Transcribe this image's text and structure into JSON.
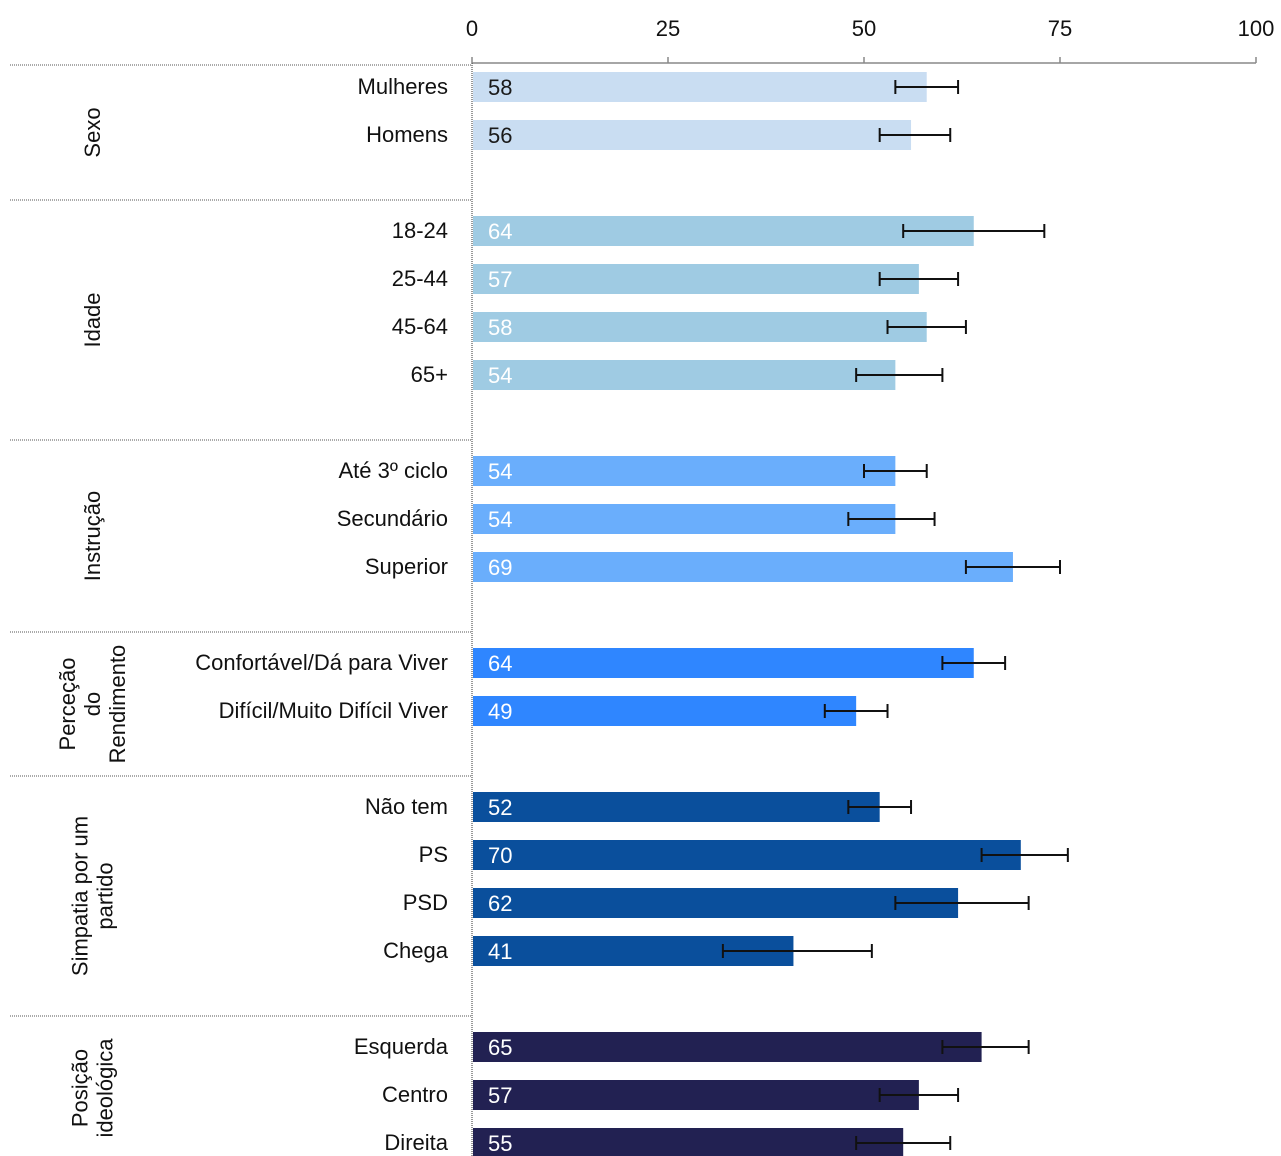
{
  "chart_data": {
    "type": "bar",
    "orientation": "horizontal",
    "xlim": [
      0,
      100
    ],
    "xticks": [
      0,
      25,
      50,
      75,
      100
    ],
    "grid": false,
    "groups": [
      {
        "label_lines": [
          "Sexo"
        ],
        "color": "#c9ddf2",
        "value_label_color": "#1a1a1a",
        "items": [
          {
            "category": "Mulheres",
            "value": 58,
            "label": "58",
            "err_low": 54,
            "err_high": 62
          },
          {
            "category": "Homens",
            "value": 56,
            "label": "56",
            "err_low": 52,
            "err_high": 61
          }
        ]
      },
      {
        "label_lines": [
          "Idade"
        ],
        "color": "#9fcbe3",
        "value_label_color": "#ffffff",
        "items": [
          {
            "category": "18-24",
            "value": 64,
            "label": "64",
            "err_low": 55,
            "err_high": 73
          },
          {
            "category": "25-44",
            "value": 57,
            "label": "57",
            "err_low": 52,
            "err_high": 62
          },
          {
            "category": "45-64",
            "value": 58,
            "label": "58",
            "err_low": 53,
            "err_high": 63
          },
          {
            "category": "65+",
            "value": 54,
            "label": "54",
            "err_low": 49,
            "err_high": 60
          }
        ]
      },
      {
        "label_lines": [
          "Instrução"
        ],
        "color": "#6aaefc",
        "value_label_color": "#ffffff",
        "items": [
          {
            "category": "Até 3º ciclo",
            "value": 54,
            "label": "54",
            "err_low": 50,
            "err_high": 58
          },
          {
            "category": "Secundário",
            "value": 54,
            "label": "54",
            "err_low": 48,
            "err_high": 59
          },
          {
            "category": "Superior",
            "value": 69,
            "label": "69",
            "err_low": 63,
            "err_high": 75
          }
        ]
      },
      {
        "label_lines": [
          "Perceção",
          "do",
          "Rendimento"
        ],
        "color": "#2f86ff",
        "value_label_color": "#ffffff",
        "items": [
          {
            "category": "Confortável/Dá para Viver",
            "value": 64,
            "label": "64",
            "err_low": 60,
            "err_high": 68
          },
          {
            "category": "Difícil/Muito Difícil Viver",
            "value": 49,
            "label": "49",
            "err_low": 45,
            "err_high": 53
          }
        ]
      },
      {
        "label_lines": [
          "Simpatia por um",
          "partido"
        ],
        "color": "#0a4f9c",
        "value_label_color": "#ffffff",
        "items": [
          {
            "category": "Não tem",
            "value": 52,
            "label": "52",
            "err_low": 48,
            "err_high": 56
          },
          {
            "category": "PS",
            "value": 70,
            "label": "70",
            "err_low": 65,
            "err_high": 76
          },
          {
            "category": "PSD",
            "value": 62,
            "label": "62",
            "err_low": 54,
            "err_high": 71
          },
          {
            "category": "Chega",
            "value": 41,
            "label": "41",
            "err_low": 32,
            "err_high": 51
          }
        ]
      },
      {
        "label_lines": [
          "Posição",
          "ideológica"
        ],
        "color": "#222152",
        "value_label_color": "#ffffff",
        "items": [
          {
            "category": "Esquerda",
            "value": 65,
            "label": "65",
            "err_low": 60,
            "err_high": 71
          },
          {
            "category": "Centro",
            "value": 57,
            "label": "57",
            "err_low": 52,
            "err_high": 62
          },
          {
            "category": "Direita",
            "value": 55,
            "label": "55",
            "err_low": 49,
            "err_high": 61
          }
        ]
      }
    ]
  }
}
